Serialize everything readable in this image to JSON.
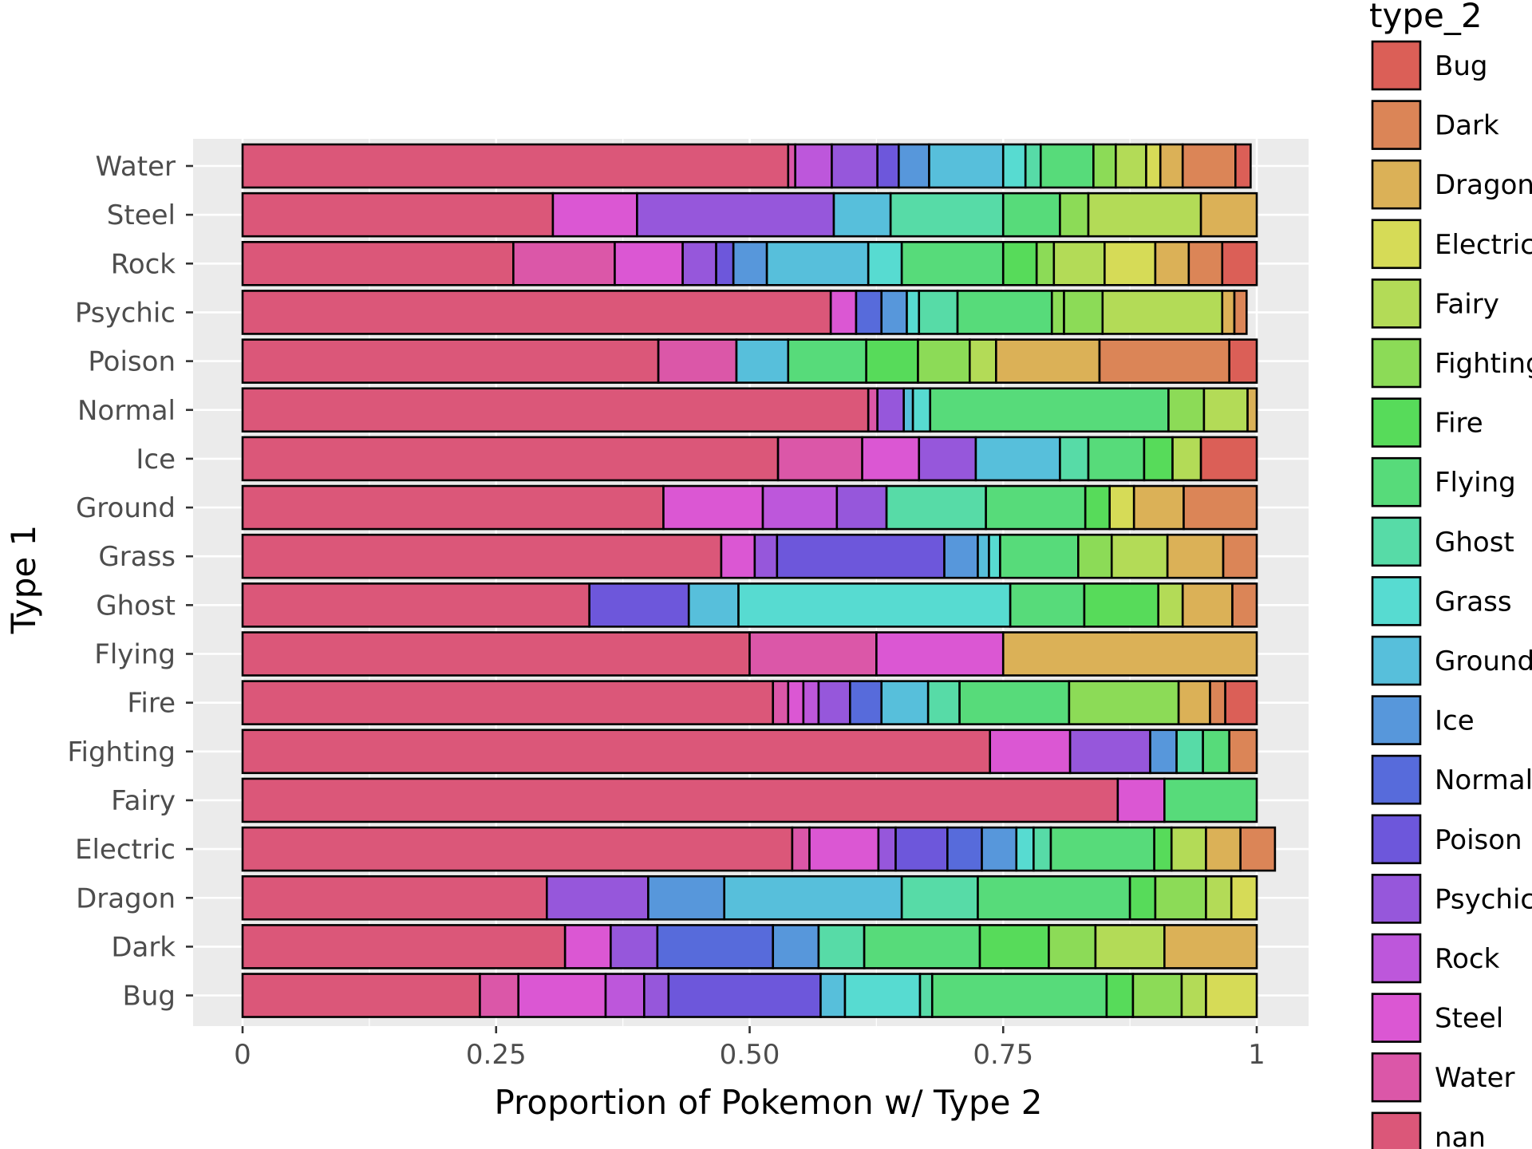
{
  "chart_data": {
    "type": "bar",
    "orientation": "horizontal",
    "stacked": true,
    "xlabel": "Proportion of Pokemon w/ Type 2",
    "ylabel": "Type 1",
    "xlim": [
      0,
      1
    ],
    "x_ticks": [
      0,
      0.25,
      0.5,
      0.75,
      1
    ],
    "x_tick_labels": [
      "0",
      "0.25",
      "0.50",
      "0.75",
      "1"
    ],
    "grid": true,
    "legend": {
      "title": "type_2",
      "position": "right"
    },
    "categories": [
      "Water",
      "Steel",
      "Rock",
      "Psychic",
      "Poison",
      "Normal",
      "Ice",
      "Ground",
      "Grass",
      "Ghost",
      "Flying",
      "Fire",
      "Fighting",
      "Fairy",
      "Electric",
      "Dragon",
      "Dark",
      "Bug"
    ],
    "series_colors": {
      "Bug": "#db5f57",
      "Dark": "#db8557",
      "Dragon": "#dbb157",
      "Electric": "#d6db57",
      "Fairy": "#b3db57",
      "Fighting": "#8cdb57",
      "Fire": "#57db5a",
      "Flying": "#57db7a",
      "Ghost": "#57dba7",
      "Grass": "#57dbd1",
      "Ground": "#57bfdb",
      "Ice": "#5797db",
      "Normal": "#576bdb",
      "Poison": "#6d57db",
      "Psychic": "#9657db",
      "Rock": "#bd57db",
      "Steel": "#db57d3",
      "Water": "#db57a8",
      "nan": "#db5779"
    },
    "bars": [
      {
        "type_1": "Water",
        "segments": [
          {
            "type_2": "nan",
            "value": 0.538
          },
          {
            "type_2": "Water",
            "value": 0.007
          },
          {
            "type_2": "Rock",
            "value": 0.036
          },
          {
            "type_2": "Psychic",
            "value": 0.045
          },
          {
            "type_2": "Poison",
            "value": 0.021
          },
          {
            "type_2": "Ice",
            "value": 0.03
          },
          {
            "type_2": "Ground",
            "value": 0.073
          },
          {
            "type_2": "Grass",
            "value": 0.022
          },
          {
            "type_2": "Ghost",
            "value": 0.015
          },
          {
            "type_2": "Flying",
            "value": 0.052
          },
          {
            "type_2": "Fighting",
            "value": 0.022
          },
          {
            "type_2": "Fairy",
            "value": 0.03
          },
          {
            "type_2": "Electric",
            "value": 0.014
          },
          {
            "type_2": "Dragon",
            "value": 0.022
          },
          {
            "type_2": "Dark",
            "value": 0.052
          },
          {
            "type_2": "Bug",
            "value": 0.015
          }
        ]
      },
      {
        "type_1": "Steel",
        "segments": [
          {
            "type_2": "nan",
            "value": 0.306
          },
          {
            "type_2": "Steel",
            "value": 0.083
          },
          {
            "type_2": "Psychic",
            "value": 0.194
          },
          {
            "type_2": "Ground",
            "value": 0.056
          },
          {
            "type_2": "Ghost",
            "value": 0.111
          },
          {
            "type_2": "Flying",
            "value": 0.056
          },
          {
            "type_2": "Fighting",
            "value": 0.028
          },
          {
            "type_2": "Fairy",
            "value": 0.111
          },
          {
            "type_2": "Dragon",
            "value": 0.055
          }
        ]
      },
      {
        "type_1": "Rock",
        "segments": [
          {
            "type_2": "nan",
            "value": 0.267
          },
          {
            "type_2": "Water",
            "value": 0.1
          },
          {
            "type_2": "Steel",
            "value": 0.067
          },
          {
            "type_2": "Psychic",
            "value": 0.033
          },
          {
            "type_2": "Poison",
            "value": 0.017
          },
          {
            "type_2": "Ice",
            "value": 0.033
          },
          {
            "type_2": "Ground",
            "value": 0.1
          },
          {
            "type_2": "Grass",
            "value": 0.033
          },
          {
            "type_2": "Flying",
            "value": 0.1
          },
          {
            "type_2": "Fire",
            "value": 0.033
          },
          {
            "type_2": "Fighting",
            "value": 0.017
          },
          {
            "type_2": "Fairy",
            "value": 0.05
          },
          {
            "type_2": "Electric",
            "value": 0.05
          },
          {
            "type_2": "Dragon",
            "value": 0.033
          },
          {
            "type_2": "Dark",
            "value": 0.033
          },
          {
            "type_2": "Bug",
            "value": 0.034
          }
        ]
      },
      {
        "type_1": "Psychic",
        "segments": [
          {
            "type_2": "nan",
            "value": 0.58
          },
          {
            "type_2": "Steel",
            "value": 0.025
          },
          {
            "type_2": "Normal",
            "value": 0.025
          },
          {
            "type_2": "Ice",
            "value": 0.025
          },
          {
            "type_2": "Grass",
            "value": 0.012
          },
          {
            "type_2": "Ghost",
            "value": 0.038
          },
          {
            "type_2": "Flying",
            "value": 0.093
          },
          {
            "type_2": "Fighting",
            "value": 0.012
          },
          {
            "type_2": "Fighting",
            "value": 0.038
          },
          {
            "type_2": "Fairy",
            "value": 0.118
          },
          {
            "type_2": "Dragon",
            "value": 0.012
          },
          {
            "type_2": "Dark",
            "value": 0.012
          }
        ]
      },
      {
        "type_1": "Poison",
        "segments": [
          {
            "type_2": "nan",
            "value": 0.41
          },
          {
            "type_2": "Water",
            "value": 0.077
          },
          {
            "type_2": "Ground",
            "value": 0.051
          },
          {
            "type_2": "Flying",
            "value": 0.077
          },
          {
            "type_2": "Fire",
            "value": 0.051
          },
          {
            "type_2": "Fighting",
            "value": 0.051
          },
          {
            "type_2": "Fairy",
            "value": 0.026
          },
          {
            "type_2": "Dragon",
            "value": 0.102
          },
          {
            "type_2": "Dark",
            "value": 0.128
          },
          {
            "type_2": "Bug",
            "value": 0.027
          }
        ]
      },
      {
        "type_1": "Normal",
        "segments": [
          {
            "type_2": "nan",
            "value": 0.617
          },
          {
            "type_2": "Water",
            "value": 0.009
          },
          {
            "type_2": "Psychic",
            "value": 0.026
          },
          {
            "type_2": "Ground",
            "value": 0.009
          },
          {
            "type_2": "Grass",
            "value": 0.017
          },
          {
            "type_2": "Flying",
            "value": 0.235
          },
          {
            "type_2": "Fighting",
            "value": 0.035
          },
          {
            "type_2": "Fairy",
            "value": 0.043
          },
          {
            "type_2": "Dragon",
            "value": 0.009
          }
        ]
      },
      {
        "type_1": "Ice",
        "segments": [
          {
            "type_2": "nan",
            "value": 0.528
          },
          {
            "type_2": "Water",
            "value": 0.083
          },
          {
            "type_2": "Steel",
            "value": 0.056
          },
          {
            "type_2": "Psychic",
            "value": 0.056
          },
          {
            "type_2": "Ground",
            "value": 0.083
          },
          {
            "type_2": "Ghost",
            "value": 0.028
          },
          {
            "type_2": "Flying",
            "value": 0.055
          },
          {
            "type_2": "Fire",
            "value": 0.028
          },
          {
            "type_2": "Fairy",
            "value": 0.028
          },
          {
            "type_2": "Bug",
            "value": 0.055
          }
        ]
      },
      {
        "type_1": "Ground",
        "segments": [
          {
            "type_2": "nan",
            "value": 0.415
          },
          {
            "type_2": "Steel",
            "value": 0.098
          },
          {
            "type_2": "Rock",
            "value": 0.073
          },
          {
            "type_2": "Psychic",
            "value": 0.049
          },
          {
            "type_2": "Ghost",
            "value": 0.098
          },
          {
            "type_2": "Flying",
            "value": 0.098
          },
          {
            "type_2": "Fire",
            "value": 0.024
          },
          {
            "type_2": "Electric",
            "value": 0.024
          },
          {
            "type_2": "Dragon",
            "value": 0.049
          },
          {
            "type_2": "Dark",
            "value": 0.072
          }
        ]
      },
      {
        "type_1": "Grass",
        "segments": [
          {
            "type_2": "nan",
            "value": 0.472
          },
          {
            "type_2": "Steel",
            "value": 0.033
          },
          {
            "type_2": "Psychic",
            "value": 0.022
          },
          {
            "type_2": "Poison",
            "value": 0.165
          },
          {
            "type_2": "Ice",
            "value": 0.033
          },
          {
            "type_2": "Ground",
            "value": 0.011
          },
          {
            "type_2": "Grass",
            "value": 0.011
          },
          {
            "type_2": "Flying",
            "value": 0.077
          },
          {
            "type_2": "Fighting",
            "value": 0.033
          },
          {
            "type_2": "Fairy",
            "value": 0.055
          },
          {
            "type_2": "Dragon",
            "value": 0.055
          },
          {
            "type_2": "Dark",
            "value": 0.033
          }
        ]
      },
      {
        "type_1": "Ghost",
        "segments": [
          {
            "type_2": "nan",
            "value": 0.342
          },
          {
            "type_2": "Poison",
            "value": 0.098
          },
          {
            "type_2": "Ground",
            "value": 0.049
          },
          {
            "type_2": "Grass",
            "value": 0.268
          },
          {
            "type_2": "Flying",
            "value": 0.073
          },
          {
            "type_2": "Fire",
            "value": 0.073
          },
          {
            "type_2": "Fairy",
            "value": 0.024
          },
          {
            "type_2": "Dragon",
            "value": 0.049
          },
          {
            "type_2": "Dark",
            "value": 0.024
          }
        ]
      },
      {
        "type_1": "Flying",
        "segments": [
          {
            "type_2": "nan",
            "value": 0.5
          },
          {
            "type_2": "Water",
            "value": 0.125
          },
          {
            "type_2": "Steel",
            "value": 0.125
          },
          {
            "type_2": "Dragon",
            "value": 0.25
          }
        ]
      },
      {
        "type_1": "Fire",
        "segments": [
          {
            "type_2": "nan",
            "value": 0.523
          },
          {
            "type_2": "Water",
            "value": 0.015
          },
          {
            "type_2": "Steel",
            "value": 0.015
          },
          {
            "type_2": "Rock",
            "value": 0.015
          },
          {
            "type_2": "Psychic",
            "value": 0.031
          },
          {
            "type_2": "Normal",
            "value": 0.031
          },
          {
            "type_2": "Ground",
            "value": 0.046
          },
          {
            "type_2": "Ghost",
            "value": 0.031
          },
          {
            "type_2": "Flying",
            "value": 0.108
          },
          {
            "type_2": "Fighting",
            "value": 0.108
          },
          {
            "type_2": "Dragon",
            "value": 0.031
          },
          {
            "type_2": "Dark",
            "value": 0.015
          },
          {
            "type_2": "Bug",
            "value": 0.031
          }
        ]
      },
      {
        "type_1": "Fighting",
        "segments": [
          {
            "type_2": "nan",
            "value": 0.737
          },
          {
            "type_2": "Steel",
            "value": 0.079
          },
          {
            "type_2": "Psychic",
            "value": 0.079
          },
          {
            "type_2": "Ice",
            "value": 0.026
          },
          {
            "type_2": "Ghost",
            "value": 0.026
          },
          {
            "type_2": "Flying",
            "value": 0.026
          },
          {
            "type_2": "Dark",
            "value": 0.027
          }
        ]
      },
      {
        "type_1": "Fairy",
        "segments": [
          {
            "type_2": "nan",
            "value": 0.863
          },
          {
            "type_2": "Steel",
            "value": 0.046
          },
          {
            "type_2": "Flying",
            "value": 0.091
          }
        ]
      },
      {
        "type_1": "Electric",
        "segments": [
          {
            "type_2": "nan",
            "value": 0.542
          },
          {
            "type_2": "Water",
            "value": 0.017
          },
          {
            "type_2": "Steel",
            "value": 0.068
          },
          {
            "type_2": "Psychic",
            "value": 0.017
          },
          {
            "type_2": "Poison",
            "value": 0.051
          },
          {
            "type_2": "Normal",
            "value": 0.034
          },
          {
            "type_2": "Ice",
            "value": 0.034
          },
          {
            "type_2": "Grass",
            "value": 0.017
          },
          {
            "type_2": "Ghost",
            "value": 0.017
          },
          {
            "type_2": "Flying",
            "value": 0.102
          },
          {
            "type_2": "Fire",
            "value": 0.017
          },
          {
            "type_2": "Fairy",
            "value": 0.034
          },
          {
            "type_2": "Dragon",
            "value": 0.034
          },
          {
            "type_2": "Dark",
            "value": 0.034
          }
        ]
      },
      {
        "type_1": "Dragon",
        "segments": [
          {
            "type_2": "nan",
            "value": 0.3
          },
          {
            "type_2": "Psychic",
            "value": 0.1
          },
          {
            "type_2": "Ice",
            "value": 0.075
          },
          {
            "type_2": "Ground",
            "value": 0.175
          },
          {
            "type_2": "Ghost",
            "value": 0.075
          },
          {
            "type_2": "Flying",
            "value": 0.15
          },
          {
            "type_2": "Fire",
            "value": 0.025
          },
          {
            "type_2": "Fighting",
            "value": 0.05
          },
          {
            "type_2": "Fairy",
            "value": 0.025
          },
          {
            "type_2": "Electric",
            "value": 0.025
          }
        ]
      },
      {
        "type_1": "Dark",
        "segments": [
          {
            "type_2": "nan",
            "value": 0.318
          },
          {
            "type_2": "Steel",
            "value": 0.045
          },
          {
            "type_2": "Psychic",
            "value": 0.046
          },
          {
            "type_2": "Normal",
            "value": 0.114
          },
          {
            "type_2": "Ice",
            "value": 0.045
          },
          {
            "type_2": "Ghost",
            "value": 0.045
          },
          {
            "type_2": "Flying",
            "value": 0.114
          },
          {
            "type_2": "Fire",
            "value": 0.068
          },
          {
            "type_2": "Fighting",
            "value": 0.046
          },
          {
            "type_2": "Fairy",
            "value": 0.068
          },
          {
            "type_2": "Dragon",
            "value": 0.091
          }
        ]
      },
      {
        "type_1": "Bug",
        "segments": [
          {
            "type_2": "nan",
            "value": 0.234
          },
          {
            "type_2": "Water",
            "value": 0.038
          },
          {
            "type_2": "Steel",
            "value": 0.086
          },
          {
            "type_2": "Rock",
            "value": 0.038
          },
          {
            "type_2": "Psychic",
            "value": 0.024
          },
          {
            "type_2": "Poison",
            "value": 0.15
          },
          {
            "type_2": "Ground",
            "value": 0.024
          },
          {
            "type_2": "Grass",
            "value": 0.074
          },
          {
            "type_2": "Ghost",
            "value": 0.012
          },
          {
            "type_2": "Flying",
            "value": 0.172
          },
          {
            "type_2": "Fire",
            "value": 0.026
          },
          {
            "type_2": "Fighting",
            "value": 0.048
          },
          {
            "type_2": "Fairy",
            "value": 0.024
          },
          {
            "type_2": "Electric",
            "value": 0.05
          }
        ]
      }
    ],
    "legend_entries": [
      "Bug",
      "Dark",
      "Dragon",
      "Electric",
      "Fairy",
      "Fighting",
      "Fire",
      "Flying",
      "Ghost",
      "Grass",
      "Ground",
      "Ice",
      "Normal",
      "Poison",
      "Psychic",
      "Rock",
      "Steel",
      "Water",
      "nan"
    ]
  }
}
